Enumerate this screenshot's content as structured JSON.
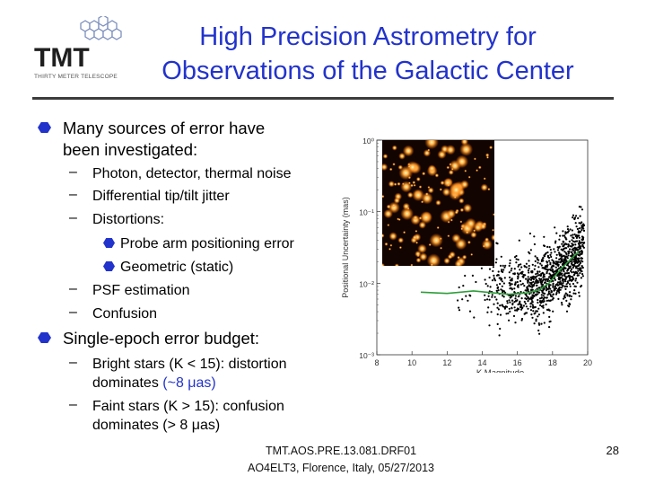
{
  "logo": {
    "text": "TMT",
    "tagline": "THIRTY METER TELESCOPE"
  },
  "title": {
    "line1": "High Precision Astrometry for",
    "line2": "Observations of the Galactic Center"
  },
  "bullets": {
    "b1_line1": "Many sources of error have",
    "b1_line2": "been investigated:",
    "sub1": "Photon, detector, thermal noise",
    "sub2": "Differential tip/tilt jitter",
    "sub3": "Distortions:",
    "subsub1": "Probe arm positioning error",
    "subsub2": "Geometric (static)",
    "sub4": "PSF estimation",
    "sub5": "Confusion",
    "b2": "Single-epoch error budget:",
    "sub6_line1": "Bright stars (K < 15): distortion",
    "sub6_line2a": "dominates ",
    "sub6_line2b": "(~8 μas)",
    "sub7_line1": "Faint stars (K > 15): confusion",
    "sub7_line2": "dominates (> 8 μas)",
    "dash": "–"
  },
  "colors": {
    "accent": "#2233cc",
    "rule": "#3c3c3c",
    "fit_line": "#2e9e3a"
  },
  "chart_data": {
    "type": "scatter",
    "xlabel": "K Magnitude",
    "ylabel": "Positional Uncertainty (mas)",
    "xlim": [
      8,
      20
    ],
    "ylim_log10": [
      -3,
      0
    ],
    "x_ticks": [
      "8",
      "10",
      "12",
      "14",
      "16",
      "18",
      "20"
    ],
    "y_ticks": [
      "10⁰",
      "10⁻¹",
      "10⁻²",
      "10⁻³"
    ],
    "series": [
      {
        "x": [
          10.5,
          12.0,
          13.5,
          14.5,
          15.5,
          16.5,
          17.2,
          17.8,
          18.5,
          19.5
        ],
        "y": [
          0.0075,
          0.0072,
          0.0078,
          0.0074,
          0.007,
          0.0073,
          0.008,
          0.01,
          0.016,
          0.028
        ]
      }
    ],
    "grid": false,
    "inset": "galactic center star field image"
  },
  "footer": {
    "line1": "TMT.AOS.PRE.13.081.DRF01",
    "line2": "AO4ELT3, Florence, Italy, 05/27/2013",
    "page": "28"
  }
}
